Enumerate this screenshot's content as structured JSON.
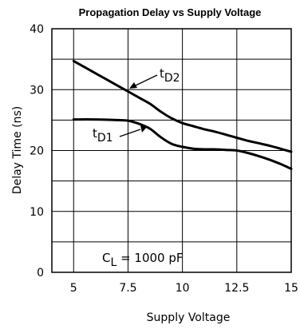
{
  "chart_data": {
    "type": "line",
    "title": "Propagation Delay vs Supply Voltage",
    "xlabel": "Supply Voltage",
    "ylabel": "Delay Time (ns)",
    "xlim": [
      4,
      15
    ],
    "ylim": [
      0,
      40
    ],
    "x_ticks": [
      5,
      7.5,
      10,
      12.5,
      15
    ],
    "x_tick_labels": [
      "5",
      "7.5",
      "10",
      "12.5",
      "15"
    ],
    "y_ticks": [
      0,
      10,
      20,
      30,
      40
    ],
    "y_tick_labels": [
      "0",
      "10",
      "20",
      "30",
      "40"
    ],
    "grid": true,
    "series": [
      {
        "name": "tD2",
        "label_main": "t",
        "label_sub": "D2",
        "x": [
          5,
          6,
          7,
          7.5,
          8,
          8.5,
          9,
          9.5,
          10,
          10.5,
          11,
          11.5,
          12,
          12.5,
          13,
          13.5,
          14,
          14.5,
          15
        ],
        "y": [
          34.7,
          32.7,
          30.7,
          29.7,
          28.7,
          27.7,
          26.4,
          25.3,
          24.5,
          24.0,
          23.5,
          23.1,
          22.6,
          22.1,
          21.6,
          21.2,
          20.8,
          20.3,
          19.8
        ]
      },
      {
        "name": "tD1",
        "label_main": "t",
        "label_sub": "D1",
        "x": [
          5,
          6,
          7,
          7.5,
          8,
          8.5,
          9,
          9.5,
          10,
          10.5,
          11,
          11.5,
          12,
          12.5,
          13,
          13.5,
          14,
          14.5,
          15
        ],
        "y": [
          25.1,
          25.1,
          25.0,
          24.9,
          24.4,
          23.6,
          22.2,
          21.1,
          20.6,
          20.3,
          20.2,
          20.2,
          20.1,
          20.0,
          19.6,
          19.1,
          18.5,
          17.8,
          17.0
        ]
      }
    ],
    "annotation": {
      "main": "C",
      "sub": "L",
      "rest": " = 1000 pF"
    }
  }
}
